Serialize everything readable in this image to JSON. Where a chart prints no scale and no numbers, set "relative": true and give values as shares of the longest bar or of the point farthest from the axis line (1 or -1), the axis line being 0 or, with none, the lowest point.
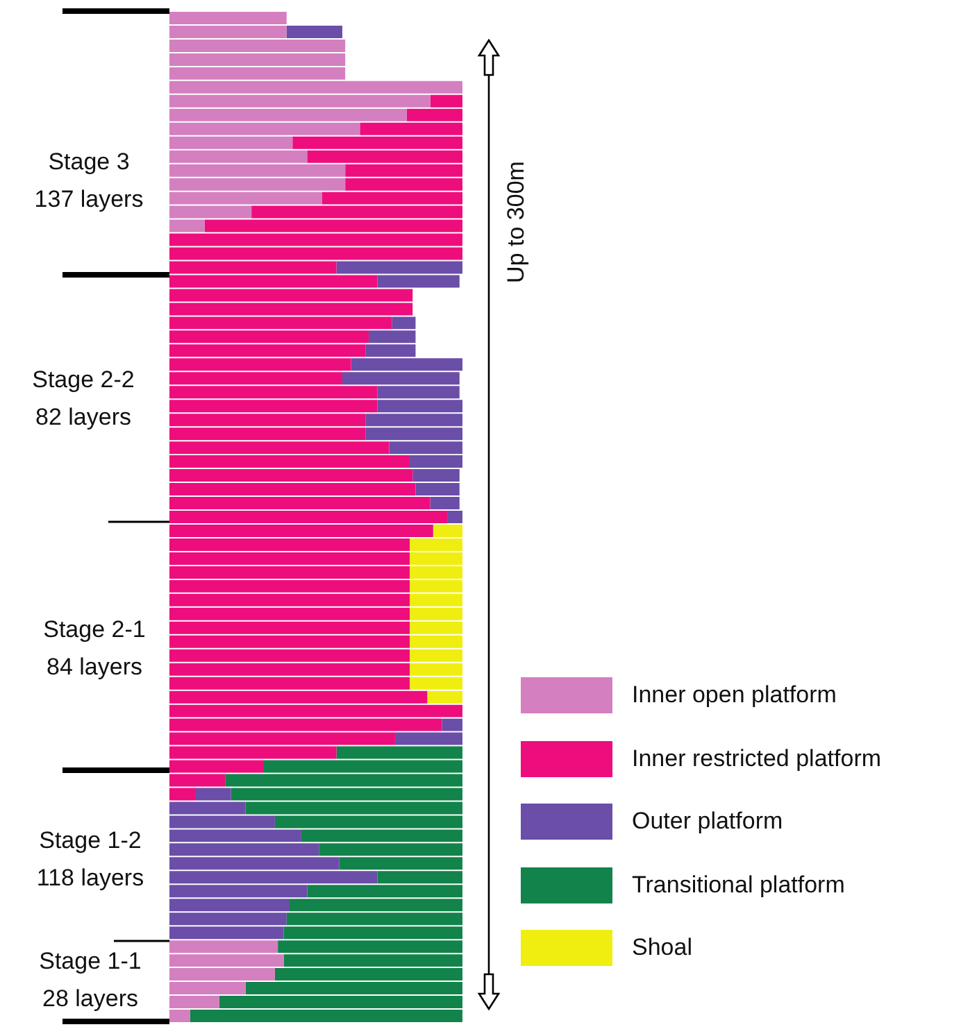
{
  "chart_data": {
    "type": "bar",
    "orientation": "horizontal",
    "stacked": true,
    "relative": true,
    "legend": "bottom right",
    "categories": [
      null,
      null,
      null,
      null,
      null,
      null,
      null,
      null,
      null,
      null,
      null,
      null,
      null,
      null,
      null,
      null,
      null,
      null,
      null,
      null,
      null,
      null,
      null,
      null,
      null,
      null,
      null,
      null,
      null,
      null,
      null,
      null,
      null,
      null,
      null,
      null,
      null,
      null,
      null,
      null,
      null,
      null,
      null,
      null,
      null,
      null,
      null,
      null,
      null,
      null,
      null,
      null,
      null,
      null,
      null,
      null,
      null,
      null,
      null,
      null,
      null,
      null,
      null,
      null,
      null,
      null,
      null,
      null,
      null,
      null,
      null,
      null,
      null
    ],
    "series": [
      {
        "name": "Inner open platform",
        "color": "#d47fc0",
        "values": [
          0.4,
          0.4,
          0.6,
          0.6,
          0.6,
          1,
          0.89,
          0.81,
          0.65,
          0.42,
          0.47,
          0.6,
          0.6,
          0.52,
          0.28,
          0.12,
          0,
          0,
          0,
          0,
          0,
          0,
          0,
          0,
          0,
          0,
          0,
          0,
          0,
          0,
          0,
          0,
          0,
          0,
          0,
          0,
          0,
          0,
          0,
          0,
          0,
          0,
          0,
          0,
          0,
          0,
          0,
          0,
          0,
          0,
          0,
          0,
          0,
          0,
          0,
          0,
          0,
          0,
          0,
          0,
          0,
          0,
          0,
          0,
          0,
          0,
          0,
          0.37,
          0.39,
          0.36,
          0.26,
          0.17,
          0.07
        ]
      },
      {
        "name": "Inner restricted platform",
        "color": "#ee0d7d",
        "values": [
          0,
          0,
          0,
          0,
          0,
          0,
          0.11,
          0.19,
          0.35,
          0.58,
          0.53,
          0.4,
          0.4,
          0.48,
          0.72,
          0.88,
          1,
          1,
          0.57,
          0.71,
          0.83,
          0.83,
          0.76,
          0.68,
          0.67,
          0.62,
          0.59,
          0.71,
          0.71,
          0.67,
          0.67,
          0.75,
          0.82,
          0.83,
          0.84,
          0.89,
          0.95,
          0.9,
          0.82,
          0.82,
          0.82,
          0.82,
          0.82,
          0.82,
          0.82,
          0.82,
          0.82,
          0.82,
          0.82,
          0.88,
          1,
          0.93,
          0.77,
          0.57,
          0.32,
          0.19,
          0.09,
          0,
          0,
          0,
          0,
          0,
          0,
          0,
          0,
          0,
          0,
          0,
          0,
          0,
          0,
          0,
          0
        ]
      },
      {
        "name": "Outer platform",
        "color": "#6a4ea8",
        "values": [
          0,
          0.19,
          0,
          0,
          0,
          0,
          0,
          0,
          0,
          0,
          0,
          0,
          0,
          0,
          0,
          0,
          0,
          0,
          0.43,
          0.28,
          0,
          0,
          0.08,
          0.16,
          0.17,
          0.38,
          0.4,
          0.28,
          0.29,
          0.33,
          0.33,
          0.25,
          0.18,
          0.16,
          0.15,
          0.1,
          0.05,
          0,
          0,
          0,
          0,
          0,
          0,
          0,
          0,
          0,
          0,
          0,
          0,
          0,
          0,
          0.07,
          0.23,
          0,
          0,
          0,
          0.12,
          0.26,
          0.36,
          0.45,
          0.51,
          0.58,
          0.71,
          0.47,
          0.41,
          0.4,
          0.39,
          0,
          0,
          0,
          0,
          0,
          0
        ]
      },
      {
        "name": "Transitional platform",
        "color": "#12834a",
        "values": [
          0,
          0,
          0,
          0,
          0,
          0,
          0,
          0,
          0,
          0,
          0,
          0,
          0,
          0,
          0,
          0,
          0,
          0,
          0,
          0,
          0,
          0,
          0,
          0,
          0,
          0,
          0,
          0,
          0,
          0,
          0,
          0,
          0,
          0,
          0,
          0,
          0,
          0,
          0,
          0,
          0,
          0,
          0,
          0,
          0,
          0,
          0,
          0,
          0,
          0,
          0,
          0,
          0,
          0.43,
          0.68,
          0.81,
          0.79,
          0.74,
          0.64,
          0.55,
          0.49,
          0.42,
          0.29,
          0.53,
          0.59,
          0.6,
          0.61,
          0.63,
          0.61,
          0.64,
          0.74,
          0.83,
          0.93
        ]
      },
      {
        "name": "Shoal",
        "color": "#f0ee10",
        "values": [
          0,
          0,
          0,
          0,
          0,
          0,
          0,
          0,
          0,
          0,
          0,
          0,
          0,
          0,
          0,
          0,
          0,
          0,
          0,
          0,
          0,
          0,
          0,
          0,
          0,
          0,
          0,
          0,
          0,
          0,
          0,
          0,
          0,
          0,
          0,
          0,
          0,
          0.1,
          0.18,
          0.18,
          0.18,
          0.18,
          0.18,
          0.18,
          0.18,
          0.18,
          0.18,
          0.18,
          0.18,
          0.12,
          0,
          0,
          0,
          0,
          0,
          0,
          0,
          0,
          0,
          0,
          0,
          0,
          0,
          0,
          0,
          0,
          0,
          0,
          0,
          0,
          0,
          0,
          0
        ]
      }
    ],
    "annotations": [
      "Stage 3\n137 layers",
      "Stage 2-2\n82 layers",
      "Stage 2-1\n84 layers",
      "Stage 1-2\n118 layers",
      "Stage 1-1\n28 layers",
      "Up to 300m"
    ]
  }
}
